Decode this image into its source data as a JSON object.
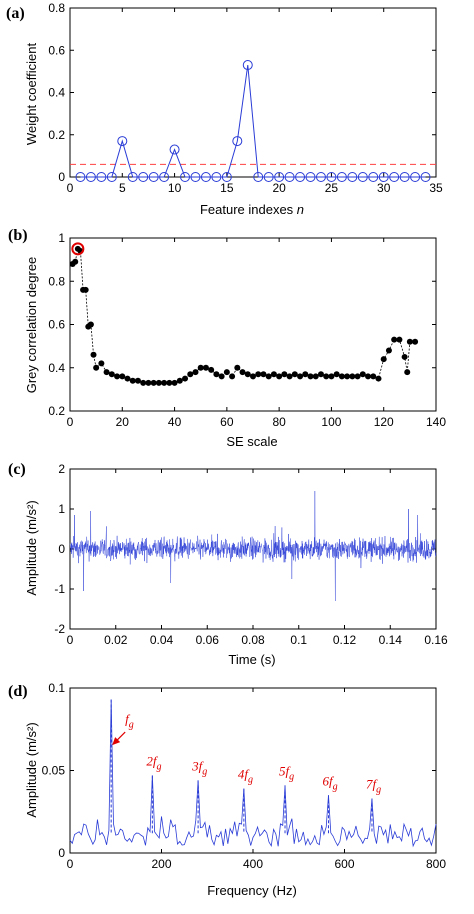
{
  "panels": {
    "a": {
      "label": "(a)",
      "xlabel": "Feature indexes ",
      "xlabel_italic": "n",
      "ylabel": "Weight coefficient"
    },
    "b": {
      "label": "(b)",
      "xlabel": "SE scale",
      "ylabel": "Grey correlation degree"
    },
    "c": {
      "label": "(c)",
      "xlabel": "Time (s)",
      "ylabel": "Amplitude (m/s²)"
    },
    "d": {
      "label": "(d)",
      "xlabel": "Frequency (Hz)",
      "ylabel": "Amplitude (m/s²)"
    }
  },
  "colors": {
    "series": "#2a3cd6",
    "threshold": "#ff4040",
    "highlight": "#e00000",
    "points": "#000000"
  },
  "chart_data": [
    {
      "type": "line",
      "panel": "a",
      "x": [
        1,
        2,
        3,
        4,
        5,
        6,
        7,
        8,
        9,
        10,
        11,
        12,
        13,
        14,
        15,
        16,
        17,
        18,
        19,
        20,
        21,
        22,
        23,
        24,
        25,
        26,
        27,
        28,
        29,
        30,
        31,
        32,
        33,
        34
      ],
      "series": [
        {
          "marker": "circle",
          "values": [
            0,
            0,
            0,
            0,
            0.17,
            0,
            0,
            0,
            0,
            0.13,
            0,
            0,
            0,
            0,
            0,
            0.17,
            0.53,
            0,
            0,
            0,
            0,
            0,
            0,
            0,
            0,
            0,
            0,
            0,
            0,
            0,
            0,
            0,
            0,
            0
          ]
        }
      ],
      "threshold": 0.06,
      "xlim": [
        0,
        35
      ],
      "ylim": [
        0,
        0.8
      ],
      "xticks": [
        0,
        5,
        10,
        15,
        20,
        25,
        30,
        35
      ],
      "yticks": [
        0,
        0.2,
        0.4,
        0.6,
        0.8
      ],
      "xlabel": "Feature indexes n",
      "ylabel": "Weight coefficient"
    },
    {
      "type": "scatter",
      "panel": "b",
      "x": [
        1,
        2,
        3,
        4,
        5,
        6,
        7,
        8,
        9,
        10,
        12,
        14,
        16,
        18,
        20,
        22,
        24,
        26,
        28,
        30,
        32,
        34,
        36,
        38,
        40,
        42,
        44,
        46,
        48,
        50,
        52,
        54,
        56,
        58,
        60,
        62,
        64,
        66,
        68,
        70,
        72,
        74,
        76,
        78,
        80,
        82,
        84,
        86,
        88,
        90,
        92,
        94,
        96,
        98,
        100,
        102,
        104,
        106,
        108,
        110,
        112,
        114,
        116,
        118,
        120,
        122,
        124,
        126,
        128,
        129,
        130,
        132
      ],
      "y": [
        0.88,
        0.89,
        0.95,
        0.94,
        0.76,
        0.76,
        0.59,
        0.6,
        0.46,
        0.4,
        0.42,
        0.38,
        0.37,
        0.36,
        0.36,
        0.35,
        0.34,
        0.34,
        0.33,
        0.33,
        0.33,
        0.33,
        0.33,
        0.33,
        0.33,
        0.34,
        0.35,
        0.37,
        0.38,
        0.4,
        0.4,
        0.39,
        0.37,
        0.36,
        0.38,
        0.36,
        0.4,
        0.38,
        0.37,
        0.36,
        0.37,
        0.37,
        0.36,
        0.37,
        0.36,
        0.37,
        0.36,
        0.37,
        0.36,
        0.37,
        0.36,
        0.36,
        0.37,
        0.36,
        0.36,
        0.37,
        0.36,
        0.36,
        0.36,
        0.36,
        0.37,
        0.36,
        0.36,
        0.35,
        0.44,
        0.48,
        0.53,
        0.53,
        0.45,
        0.38,
        0.52,
        0.52
      ],
      "highlight_x": 3,
      "highlight_y": 0.95,
      "xlim": [
        0,
        140
      ],
      "ylim": [
        0.2,
        1
      ],
      "xticks": [
        0,
        20,
        40,
        60,
        80,
        100,
        120,
        140
      ],
      "yticks": [
        0.2,
        0.4,
        0.6,
        0.8,
        1
      ],
      "xlabel": "SE scale",
      "ylabel": "Grey correlation degree"
    },
    {
      "type": "line",
      "panel": "c",
      "signal": "vibration time series (dense noise, amplitude mostly within ±0.6)",
      "peaks": [
        {
          "x": 0.002,
          "y": 0.85
        },
        {
          "x": 0.006,
          "y": -1.05
        },
        {
          "x": 0.044,
          "y": -0.85
        },
        {
          "x": 0.097,
          "y": -0.75
        },
        {
          "x": 0.107,
          "y": 1.45
        },
        {
          "x": 0.116,
          "y": -1.3
        },
        {
          "x": 0.148,
          "y": 1.0
        },
        {
          "x": 0.152,
          "y": 0.85
        },
        {
          "x": 0.009,
          "y": 0.95
        }
      ],
      "xlim": [
        0,
        0.16
      ],
      "ylim": [
        -2,
        2
      ],
      "xticks": [
        0,
        0.02,
        0.04,
        0.06,
        0.08,
        0.1,
        0.12,
        0.14,
        0.16
      ],
      "yticks": [
        -2,
        -1,
        0,
        1,
        2
      ],
      "xlabel": "Time (s)",
      "ylabel": "Amplitude (m/s²)"
    },
    {
      "type": "line",
      "panel": "d",
      "x": [
        0,
        90,
        180,
        280,
        380,
        470,
        565,
        660
      ],
      "peaks": [
        {
          "x": 90,
          "y": 0.093
        },
        {
          "x": 180,
          "y": 0.047
        },
        {
          "x": 280,
          "y": 0.044
        },
        {
          "x": 380,
          "y": 0.039
        },
        {
          "x": 470,
          "y": 0.041
        },
        {
          "x": 565,
          "y": 0.035
        },
        {
          "x": 660,
          "y": 0.033
        }
      ],
      "harmonic_labels": [
        "f",
        "2f",
        "3f",
        "4f",
        "5f",
        "6f",
        "7f"
      ],
      "harmonic_sub": "g",
      "xlim": [
        0,
        800
      ],
      "ylim": [
        0,
        0.1
      ],
      "xticks": [
        0,
        200,
        400,
        600,
        800
      ],
      "yticks": [
        0,
        0.05,
        0.1
      ],
      "xlabel": "Frequency (Hz)",
      "ylabel": "Amplitude (m/s²)"
    }
  ]
}
